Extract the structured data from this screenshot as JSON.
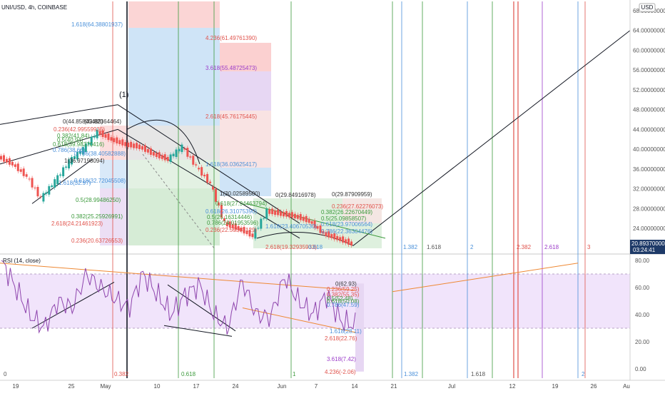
{
  "header": {
    "symbol_line": "UNI/USD, 4h, COINBASE",
    "currency_badge": "USD"
  },
  "rsi_header": {
    "label": "RSI (14, close)"
  },
  "wave_label": "(1)",
  "chart_data": [
    {
      "type": "line",
      "title": "UNI/USD, 4h, COINBASE",
      "price_axis": {
        "ticks": [
          "68.00000000",
          "64.00000000",
          "60.00000000",
          "56.00000000",
          "52.00000000",
          "48.00000000",
          "44.00000000",
          "40.00000000",
          "36.00000000",
          "32.00000000",
          "28.00000000",
          "24.00000000"
        ],
        "tick_values": [
          68,
          64,
          60,
          56,
          52,
          48,
          44,
          40,
          36,
          32,
          28,
          24
        ],
        "current_price": "20.89370000",
        "current_price_time": "03:24:41",
        "ylim": [
          20,
          69
        ]
      },
      "time_axis": {
        "ticks": [
          "19",
          "25",
          "May",
          "10",
          "17",
          "24",
          "Jun",
          "7",
          "14",
          "21",
          "Jul",
          "12",
          "19",
          "26",
          "Au"
        ]
      },
      "price_series_approx": {
        "x": [
          "Apr 16",
          "Apr 19",
          "Apr 21",
          "Apr 23",
          "Apr 25",
          "Apr 27",
          "Apr 29",
          "May 1",
          "May 3",
          "May 5",
          "May 8",
          "May 10",
          "May 12",
          "May 14",
          "May 17",
          "May 19",
          "May 21",
          "May 23",
          "May 26",
          "May 29",
          "Jun 1",
          "Jun 4",
          "Jun 7",
          "Jun 10",
          "Jun 12",
          "Jun 14"
        ],
        "y": [
          38.5,
          37.0,
          34.5,
          30.0,
          33.5,
          37.5,
          40.0,
          43.5,
          42.0,
          41.0,
          40.5,
          39.0,
          38.0,
          40.5,
          36.5,
          33.0,
          25.0,
          24.0,
          22.5,
          27.5,
          27.0,
          26.5,
          25.5,
          23.0,
          22.0,
          20.9
        ]
      },
      "fib_labels": [
        "1.618(64.38801937)",
        "4.236(61.49761390)",
        "3.618(55.48725473)",
        "2.618(45.76175445)",
        "0(44.85805488)",
        "(43.82364464)",
        "0.236(42.99559935)",
        "0.382(41.84)",
        "0.5(40.94)",
        "0.618(39.98370416)",
        "0.786(38.66)",
        "0.786(38.40582888)",
        "1(36.97198094)",
        "1.618(36.03625417)",
        "1.618(32.97)",
        "0.618(32.72045508)",
        "1(30.02589500)",
        "0(29.84916978)",
        "0(29.87909959)",
        "0.5(28.99486250)",
        "0.618(27.94463794)",
        "0.618(26.31075390)",
        "0.236(27.62276073)",
        "0.382(26.22670449)",
        "0.5(25.09858507)",
        "0.618(23.97006564)",
        "0.786(22.36304476)",
        "0.382(25.25926991)",
        "0.5(25.16314446)",
        "0.786(24.01953596)",
        "2.618(24.21461923)",
        "1.618(23.40670530)",
        "0.236(22.59563129)",
        "0.236(20.63726553)",
        "2.618(19.32935933)"
      ],
      "time_fib_labels": [
        "0.382",
        "0.618",
        "1",
        "1.382",
        "1.618",
        "2",
        "2.382",
        "2.618",
        "3"
      ]
    },
    {
      "type": "line",
      "title": "RSI (14, close)",
      "ylim": [
        0,
        80
      ],
      "yaxis_ticks": [
        "80.00",
        "60.00",
        "40.00",
        "20.00",
        "0.00"
      ],
      "tick_values": [
        80,
        60,
        40,
        20,
        0
      ],
      "bands": {
        "upper": 70,
        "lower": 30
      },
      "rsi_series_approx": {
        "y": [
          80,
          60,
          40,
          30,
          50,
          45,
          70,
          60,
          52,
          45,
          70,
          55,
          40,
          55,
          62,
          40,
          30,
          65,
          40,
          38,
          68,
          50,
          40,
          55,
          35,
          32
        ]
      },
      "fib_labels": [
        "0(62.93)",
        "0.236(59.25)",
        "0.382(55.35)",
        "0.5(52.48)",
        "0.618(50.08)",
        "0.786(47.59)",
        "1.618(28.11)",
        "2.618(22.76)",
        "3.618(7.42)",
        "4.236(-2.06)"
      ],
      "time_fib_labels": [
        "0",
        "0.382",
        "0.618",
        "1",
        "1.382",
        "1.618",
        "2"
      ]
    }
  ]
}
